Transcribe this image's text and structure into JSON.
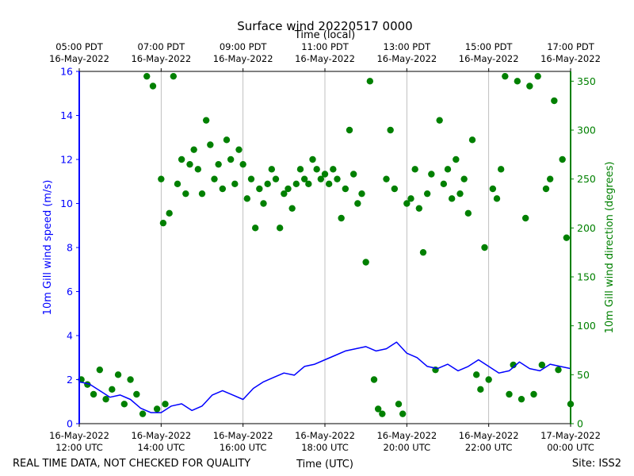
{
  "chart_data": {
    "type": "line",
    "title": "Surface wind 20220517 0000",
    "top_axis_label": "Time (local)",
    "xlabel": "Time (UTC)",
    "ylabel_left": "10m Gill wind speed (m/s)",
    "ylabel_right": "10m Gill wind direction (degrees)",
    "footer_left": "REAL TIME DATA, NOT CHECKED FOR QUALITY",
    "footer_right": "Site: ISS2",
    "x_range_hours_utc": [
      0,
      12
    ],
    "ylim_left": [
      0,
      16
    ],
    "ylim_right": [
      0,
      360
    ],
    "grid": "vertical",
    "colors": {
      "speed": "#0000ff",
      "direction": "#008000",
      "axis": "#000000",
      "grid": "#b0b0b0"
    },
    "bottom_ticks": [
      {
        "hour": 0,
        "date": "16-May-2022",
        "time": "12:00 UTC"
      },
      {
        "hour": 2,
        "date": "16-May-2022",
        "time": "14:00 UTC"
      },
      {
        "hour": 4,
        "date": "16-May-2022",
        "time": "16:00 UTC"
      },
      {
        "hour": 6,
        "date": "16-May-2022",
        "time": "18:00 UTC"
      },
      {
        "hour": 8,
        "date": "16-May-2022",
        "time": "20:00 UTC"
      },
      {
        "hour": 10,
        "date": "16-May-2022",
        "time": "22:00 UTC"
      },
      {
        "hour": 12,
        "date": "17-May-2022",
        "time": "00:00 UTC"
      }
    ],
    "top_ticks": [
      {
        "hour": 0,
        "time": "05:00 PDT",
        "date": "16-May-2022"
      },
      {
        "hour": 2,
        "time": "07:00 PDT",
        "date": "16-May-2022"
      },
      {
        "hour": 4,
        "time": "09:00 PDT",
        "date": "16-May-2022"
      },
      {
        "hour": 6,
        "time": "11:00 PDT",
        "date": "16-May-2022"
      },
      {
        "hour": 8,
        "time": "13:00 PDT",
        "date": "16-May-2022"
      },
      {
        "hour": 10,
        "time": "15:00 PDT",
        "date": "16-May-2022"
      },
      {
        "hour": 12,
        "time": "17:00 PDT",
        "date": "16-May-2022"
      }
    ],
    "left_ticks": [
      "0",
      "2",
      "4",
      "6",
      "8",
      "10",
      "12",
      "14",
      "16"
    ],
    "right_ticks": [
      "0",
      "50",
      "100",
      "150",
      "200",
      "250",
      "300",
      "350"
    ],
    "series": [
      {
        "name": "wind speed",
        "axis": "left",
        "style": "line",
        "x": [
          0.0,
          0.25,
          0.5,
          0.75,
          1.0,
          1.25,
          1.5,
          1.75,
          2.0,
          2.25,
          2.5,
          2.75,
          3.0,
          3.25,
          3.5,
          3.75,
          4.0,
          4.25,
          4.5,
          4.75,
          5.0,
          5.25,
          5.5,
          5.75,
          6.0,
          6.25,
          6.5,
          6.75,
          7.0,
          7.25,
          7.5,
          7.75,
          8.0,
          8.25,
          8.5,
          8.75,
          9.0,
          9.25,
          9.5,
          9.75,
          10.0,
          10.25,
          10.5,
          10.75,
          11.0,
          11.25,
          11.5,
          11.75,
          12.0
        ],
        "values": [
          1.9,
          1.8,
          1.5,
          1.2,
          1.3,
          1.1,
          0.7,
          0.5,
          0.5,
          0.8,
          0.9,
          0.6,
          0.8,
          1.3,
          1.5,
          1.3,
          1.1,
          1.6,
          1.9,
          2.1,
          2.3,
          2.2,
          2.6,
          2.7,
          2.9,
          3.1,
          3.3,
          3.4,
          3.5,
          3.3,
          3.4,
          3.7,
          3.2,
          3.0,
          2.6,
          2.5,
          2.7,
          2.4,
          2.6,
          2.9,
          2.6,
          2.3,
          2.4,
          2.8,
          2.5,
          2.4,
          2.7,
          2.6,
          2.5
        ]
      },
      {
        "name": "wind direction",
        "axis": "right",
        "style": "scatter",
        "x": [
          0.05,
          0.2,
          0.35,
          0.5,
          0.65,
          0.8,
          0.95,
          1.1,
          1.25,
          1.4,
          1.55,
          1.65,
          1.8,
          1.9,
          2.0,
          2.05,
          2.1,
          2.2,
          2.3,
          2.4,
          2.5,
          2.6,
          2.7,
          2.8,
          2.9,
          3.0,
          3.1,
          3.2,
          3.3,
          3.4,
          3.5,
          3.6,
          3.7,
          3.8,
          3.9,
          4.0,
          4.1,
          4.2,
          4.3,
          4.4,
          4.5,
          4.6,
          4.7,
          4.8,
          4.9,
          5.0,
          5.1,
          5.2,
          5.3,
          5.4,
          5.5,
          5.6,
          5.7,
          5.8,
          5.9,
          6.0,
          6.1,
          6.2,
          6.3,
          6.4,
          6.5,
          6.6,
          6.7,
          6.8,
          6.9,
          7.0,
          7.1,
          7.2,
          7.3,
          7.4,
          7.5,
          7.6,
          7.7,
          7.8,
          7.9,
          8.0,
          8.1,
          8.2,
          8.3,
          8.4,
          8.5,
          8.6,
          8.7,
          8.8,
          8.9,
          9.0,
          9.1,
          9.2,
          9.3,
          9.4,
          9.5,
          9.6,
          9.7,
          9.8,
          9.9,
          10.0,
          10.1,
          10.2,
          10.3,
          10.4,
          10.5,
          10.6,
          10.7,
          10.8,
          10.9,
          11.0,
          11.1,
          11.2,
          11.3,
          11.4,
          11.5,
          11.6,
          11.7,
          11.8,
          11.9,
          12.0
        ],
        "values": [
          45,
          40,
          30,
          55,
          25,
          35,
          50,
          20,
          45,
          30,
          10,
          355,
          345,
          15,
          250,
          205,
          20,
          215,
          355,
          245,
          270,
          235,
          265,
          280,
          260,
          235,
          310,
          285,
          250,
          265,
          240,
          290,
          270,
          245,
          280,
          265,
          230,
          250,
          200,
          240,
          225,
          245,
          260,
          250,
          200,
          235,
          240,
          220,
          245,
          260,
          250,
          245,
          270,
          260,
          250,
          255,
          245,
          260,
          250,
          210,
          240,
          300,
          255,
          225,
          235,
          165,
          350,
          45,
          15,
          10,
          250,
          300,
          240,
          20,
          10,
          225,
          230,
          260,
          220,
          175,
          235,
          255,
          55,
          310,
          245,
          260,
          230,
          270,
          235,
          250,
          215,
          290,
          50,
          35,
          180,
          45,
          240,
          230,
          260,
          355,
          30,
          60,
          350,
          25,
          210,
          345,
          30,
          355,
          60,
          240,
          250,
          330,
          55,
          270,
          190,
          20
        ]
      }
    ]
  }
}
